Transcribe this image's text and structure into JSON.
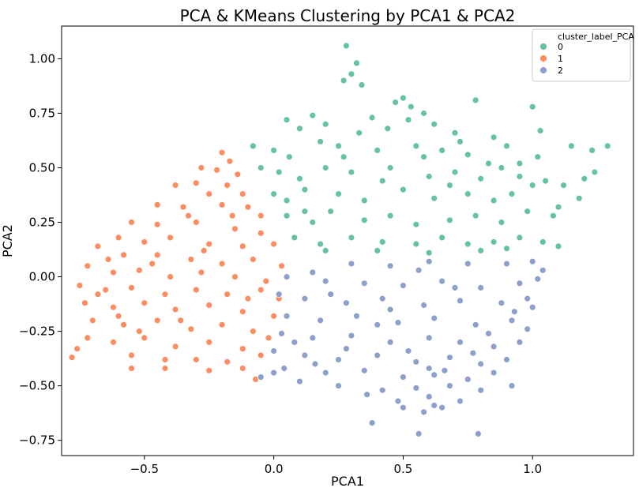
{
  "chart_data": {
    "type": "scatter",
    "title": "PCA & KMeans Clustering by PCA1 & PCA2",
    "xlabel": "PCA1",
    "ylabel": "PCA2",
    "xlim": [
      -0.82,
      1.39
    ],
    "ylim": [
      -0.82,
      1.15
    ],
    "x_ticks": [
      -0.5,
      0.0,
      0.5,
      1.0
    ],
    "x_tick_labels": [
      "−0.5",
      "0.0",
      "0.5",
      "1.0"
    ],
    "y_ticks": [
      -0.75,
      -0.5,
      -0.25,
      0.0,
      0.25,
      0.5,
      0.75,
      1.0
    ],
    "y_tick_labels": [
      "−0.75",
      "−0.50",
      "−0.25",
      "0.00",
      "0.25",
      "0.50",
      "0.75",
      "1.00"
    ],
    "grid": false,
    "legend": {
      "title": "cluster_label_PCA",
      "placement": "top-right",
      "entries": [
        "0",
        "1",
        "2"
      ]
    },
    "series": [
      {
        "name": "0",
        "color": "#66c2a5",
        "points": [
          [
            0.28,
            1.06
          ],
          [
            0.32,
            0.98
          ],
          [
            0.3,
            0.93
          ],
          [
            0.34,
            0.88
          ],
          [
            0.27,
            0.9
          ],
          [
            0.5,
            0.82
          ],
          [
            0.47,
            0.8
          ],
          [
            0.53,
            0.78
          ],
          [
            0.58,
            0.75
          ],
          [
            0.78,
            0.81
          ],
          [
            0.05,
            0.72
          ],
          [
            0.1,
            0.68
          ],
          [
            0.15,
            0.74
          ],
          [
            0.2,
            0.7
          ],
          [
            0.38,
            0.73
          ],
          [
            0.44,
            0.68
          ],
          [
            0.62,
            0.7
          ],
          [
            0.7,
            0.66
          ],
          [
            0.85,
            0.64
          ],
          [
            1.0,
            0.78
          ],
          [
            1.03,
            0.67
          ],
          [
            -0.08,
            0.6
          ],
          [
            0.0,
            0.58
          ],
          [
            0.06,
            0.55
          ],
          [
            0.18,
            0.62
          ],
          [
            0.25,
            0.6
          ],
          [
            0.4,
            0.58
          ],
          [
            0.55,
            0.6
          ],
          [
            0.65,
            0.58
          ],
          [
            0.75,
            0.56
          ],
          [
            0.9,
            0.6
          ],
          [
            0.95,
            0.52
          ],
          [
            1.02,
            0.55
          ],
          [
            1.15,
            0.6
          ],
          [
            1.23,
            0.58
          ],
          [
            1.29,
            0.6
          ],
          [
            -0.05,
            0.5
          ],
          [
            0.02,
            0.48
          ],
          [
            0.1,
            0.45
          ],
          [
            0.2,
            0.5
          ],
          [
            0.3,
            0.48
          ],
          [
            0.45,
            0.5
          ],
          [
            0.6,
            0.46
          ],
          [
            0.7,
            0.48
          ],
          [
            0.8,
            0.45
          ],
          [
            0.88,
            0.5
          ],
          [
            1.05,
            0.44
          ],
          [
            1.12,
            0.42
          ],
          [
            1.2,
            0.45
          ],
          [
            1.24,
            0.48
          ],
          [
            0.0,
            0.38
          ],
          [
            0.05,
            0.35
          ],
          [
            0.12,
            0.4
          ],
          [
            0.25,
            0.38
          ],
          [
            0.35,
            0.35
          ],
          [
            0.5,
            0.4
          ],
          [
            0.62,
            0.36
          ],
          [
            0.75,
            0.38
          ],
          [
            0.85,
            0.35
          ],
          [
            0.92,
            0.38
          ],
          [
            1.0,
            0.42
          ],
          [
            1.1,
            0.32
          ],
          [
            1.18,
            0.36
          ],
          [
            0.05,
            0.28
          ],
          [
            0.15,
            0.25
          ],
          [
            0.22,
            0.3
          ],
          [
            0.35,
            0.26
          ],
          [
            0.45,
            0.28
          ],
          [
            0.55,
            0.24
          ],
          [
            0.68,
            0.26
          ],
          [
            0.78,
            0.28
          ],
          [
            0.88,
            0.25
          ],
          [
            0.98,
            0.3
          ],
          [
            1.08,
            0.28
          ],
          [
            0.08,
            0.18
          ],
          [
            0.18,
            0.15
          ],
          [
            0.3,
            0.18
          ],
          [
            0.42,
            0.16
          ],
          [
            0.55,
            0.15
          ],
          [
            0.65,
            0.18
          ],
          [
            0.75,
            0.15
          ],
          [
            0.85,
            0.16
          ],
          [
            0.95,
            0.18
          ],
          [
            1.04,
            0.16
          ],
          [
            1.1,
            0.14
          ],
          [
            0.2,
            0.12
          ],
          [
            0.4,
            0.12
          ],
          [
            0.6,
            0.11
          ],
          [
            0.8,
            0.12
          ],
          [
            0.9,
            0.13
          ],
          [
            0.33,
            0.66
          ],
          [
            0.52,
            0.72
          ],
          [
            0.72,
            0.62
          ],
          [
            0.95,
            0.46
          ],
          [
            0.58,
            0.55
          ],
          [
            0.42,
            0.44
          ],
          [
            0.27,
            0.55
          ],
          [
            0.12,
            0.3
          ],
          [
            0.68,
            0.42
          ],
          [
            0.83,
            0.52
          ]
        ]
      },
      {
        "name": "1",
        "color": "#fc8d62",
        "points": [
          [
            -0.2,
            0.57
          ],
          [
            -0.17,
            0.53
          ],
          [
            -0.22,
            0.49
          ],
          [
            -0.28,
            0.5
          ],
          [
            -0.14,
            0.47
          ],
          [
            -0.3,
            0.43
          ],
          [
            -0.18,
            0.42
          ],
          [
            -0.38,
            0.42
          ],
          [
            -0.25,
            0.38
          ],
          [
            -0.12,
            0.38
          ],
          [
            -0.45,
            0.33
          ],
          [
            -0.35,
            0.32
          ],
          [
            -0.2,
            0.33
          ],
          [
            -0.1,
            0.32
          ],
          [
            -0.05,
            0.28
          ],
          [
            -0.55,
            0.25
          ],
          [
            -0.45,
            0.24
          ],
          [
            -0.3,
            0.25
          ],
          [
            -0.15,
            0.22
          ],
          [
            -0.05,
            0.2
          ],
          [
            -0.6,
            0.18
          ],
          [
            -0.5,
            0.16
          ],
          [
            -0.4,
            0.18
          ],
          [
            -0.25,
            0.15
          ],
          [
            -0.12,
            0.14
          ],
          [
            0.0,
            0.15
          ],
          [
            -0.68,
            0.14
          ],
          [
            -0.58,
            0.1
          ],
          [
            -0.45,
            0.1
          ],
          [
            -0.32,
            0.08
          ],
          [
            -0.2,
            0.06
          ],
          [
            -0.08,
            0.08
          ],
          [
            0.03,
            0.05
          ],
          [
            -0.72,
            0.05
          ],
          [
            -0.62,
            0.02
          ],
          [
            -0.52,
            0.03
          ],
          [
            -0.4,
            0.0
          ],
          [
            -0.28,
            0.02
          ],
          [
            -0.15,
            0.0
          ],
          [
            -0.03,
            -0.02
          ],
          [
            -0.75,
            -0.04
          ],
          [
            -0.65,
            -0.06
          ],
          [
            -0.55,
            -0.05
          ],
          [
            -0.42,
            -0.08
          ],
          [
            -0.3,
            -0.06
          ],
          [
            -0.18,
            -0.08
          ],
          [
            -0.05,
            -0.06
          ],
          [
            0.02,
            -0.1
          ],
          [
            -0.73,
            -0.12
          ],
          [
            -0.62,
            -0.14
          ],
          [
            -0.5,
            -0.12
          ],
          [
            -0.38,
            -0.15
          ],
          [
            -0.25,
            -0.13
          ],
          [
            -0.12,
            -0.16
          ],
          [
            0.0,
            -0.18
          ],
          [
            -0.7,
            -0.2
          ],
          [
            -0.58,
            -0.22
          ],
          [
            -0.45,
            -0.2
          ],
          [
            -0.32,
            -0.24
          ],
          [
            -0.2,
            -0.22
          ],
          [
            -0.08,
            -0.25
          ],
          [
            -0.02,
            -0.28
          ],
          [
            -0.72,
            -0.28
          ],
          [
            -0.62,
            -0.3
          ],
          [
            -0.5,
            -0.28
          ],
          [
            -0.38,
            -0.32
          ],
          [
            -0.25,
            -0.3
          ],
          [
            -0.12,
            -0.33
          ],
          [
            -0.76,
            -0.33
          ],
          [
            -0.78,
            -0.37
          ],
          [
            -0.55,
            -0.36
          ],
          [
            -0.42,
            -0.38
          ],
          [
            -0.3,
            -0.38
          ],
          [
            -0.18,
            -0.39
          ],
          [
            -0.05,
            -0.36
          ],
          [
            -0.55,
            -0.42
          ],
          [
            -0.42,
            -0.42
          ],
          [
            -0.25,
            -0.43
          ],
          [
            -0.12,
            -0.42
          ],
          [
            -0.07,
            -0.47
          ],
          [
            -0.68,
            -0.08
          ],
          [
            -0.6,
            -0.18
          ],
          [
            -0.52,
            -0.25
          ],
          [
            -0.33,
            0.28
          ],
          [
            -0.27,
            0.12
          ],
          [
            -0.1,
            -0.1
          ],
          [
            -0.47,
            0.06
          ],
          [
            -0.36,
            -0.2
          ],
          [
            -0.16,
            0.28
          ],
          [
            -0.64,
            0.08
          ]
        ]
      },
      {
        "name": "2",
        "color": "#8da0cb",
        "points": [
          [
            0.3,
            0.06
          ],
          [
            0.45,
            0.05
          ],
          [
            0.6,
            0.07
          ],
          [
            0.75,
            0.06
          ],
          [
            0.9,
            0.06
          ],
          [
            1.04,
            0.03
          ],
          [
            1.0,
            0.07
          ],
          [
            0.15,
            0.02
          ],
          [
            0.05,
            0.0
          ],
          [
            0.2,
            -0.02
          ],
          [
            0.35,
            -0.03
          ],
          [
            0.5,
            -0.04
          ],
          [
            0.65,
            -0.02
          ],
          [
            0.8,
            -0.05
          ],
          [
            0.95,
            -0.03
          ],
          [
            1.02,
            -0.01
          ],
          [
            0.02,
            -0.08
          ],
          [
            0.12,
            -0.1
          ],
          [
            0.28,
            -0.12
          ],
          [
            0.42,
            -0.1
          ],
          [
            0.58,
            -0.13
          ],
          [
            0.72,
            -0.11
          ],
          [
            0.88,
            -0.12
          ],
          [
            0.98,
            -0.1
          ],
          [
            1.0,
            -0.14
          ],
          [
            0.05,
            -0.18
          ],
          [
            0.18,
            -0.2
          ],
          [
            0.32,
            -0.18
          ],
          [
            0.48,
            -0.21
          ],
          [
            0.62,
            -0.19
          ],
          [
            0.78,
            -0.22
          ],
          [
            0.92,
            -0.2
          ],
          [
            0.98,
            -0.24
          ],
          [
            0.03,
            -0.26
          ],
          [
            0.15,
            -0.28
          ],
          [
            0.3,
            -0.27
          ],
          [
            0.45,
            -0.3
          ],
          [
            0.6,
            -0.28
          ],
          [
            0.72,
            -0.3
          ],
          [
            0.85,
            -0.32
          ],
          [
            0.95,
            -0.3
          ],
          [
            0.0,
            -0.34
          ],
          [
            0.12,
            -0.36
          ],
          [
            0.25,
            -0.38
          ],
          [
            0.4,
            -0.36
          ],
          [
            0.55,
            -0.39
          ],
          [
            0.68,
            -0.37
          ],
          [
            0.8,
            -0.4
          ],
          [
            0.9,
            -0.38
          ],
          [
            0.04,
            -0.42
          ],
          [
            0.2,
            -0.44
          ],
          [
            0.35,
            -0.43
          ],
          [
            0.5,
            -0.46
          ],
          [
            0.62,
            -0.45
          ],
          [
            0.75,
            -0.47
          ],
          [
            0.85,
            -0.44
          ],
          [
            0.1,
            -0.48
          ],
          [
            0.25,
            -0.5
          ],
          [
            0.42,
            -0.52
          ],
          [
            0.55,
            -0.51
          ],
          [
            0.68,
            -0.5
          ],
          [
            0.8,
            -0.52
          ],
          [
            0.92,
            -0.5
          ],
          [
            0.36,
            -0.54
          ],
          [
            0.48,
            -0.57
          ],
          [
            0.6,
            -0.55
          ],
          [
            0.72,
            -0.57
          ],
          [
            0.5,
            -0.6
          ],
          [
            0.58,
            -0.62
          ],
          [
            0.62,
            -0.59
          ],
          [
            0.65,
            -0.6
          ],
          [
            0.38,
            -0.67
          ],
          [
            0.56,
            -0.72
          ],
          [
            0.79,
            -0.72
          ],
          [
            -0.05,
            -0.46
          ],
          [
            0.0,
            -0.44
          ],
          [
            0.08,
            -0.3
          ],
          [
            0.22,
            -0.08
          ],
          [
            0.52,
            -0.34
          ],
          [
            0.66,
            -0.43
          ],
          [
            0.83,
            -0.26
          ],
          [
            0.93,
            -0.16
          ],
          [
            0.4,
            -0.22
          ],
          [
            0.28,
            -0.33
          ],
          [
            0.7,
            -0.05
          ],
          [
            0.56,
            0.03
          ],
          [
            0.16,
            -0.4
          ],
          [
            0.45,
            -0.15
          ],
          [
            0.77,
            -0.35
          ],
          [
            0.6,
            -0.42
          ]
        ]
      }
    ]
  }
}
